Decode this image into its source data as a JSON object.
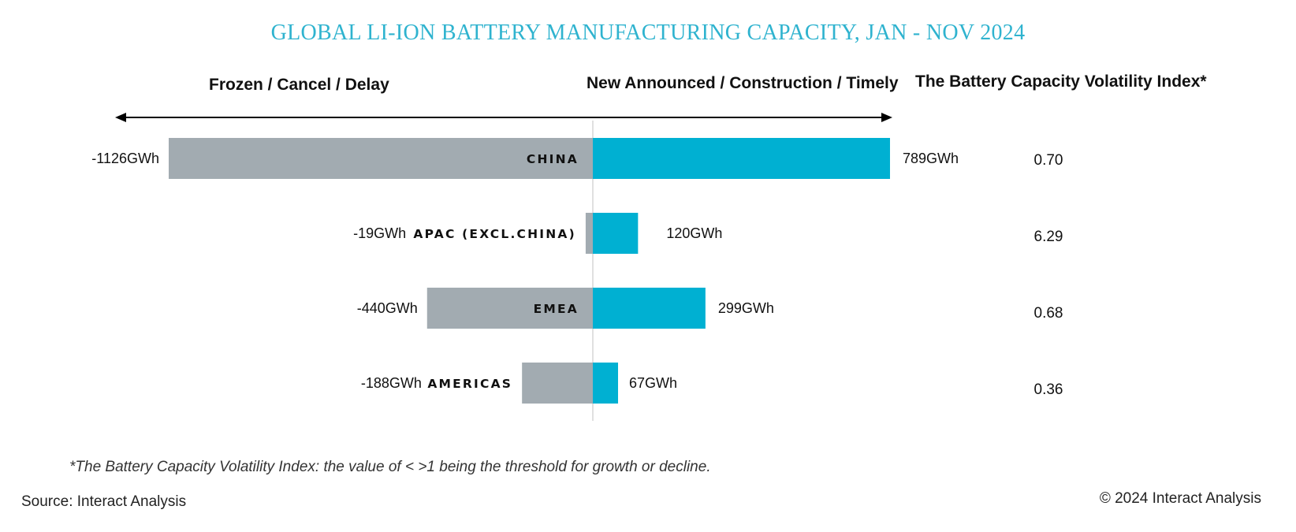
{
  "title": "GLOBAL LI-ION BATTERY MANUFACTURING CAPACITY, JAN - NOV 2024",
  "headers": {
    "left": "Frozen / Cancel / Delay",
    "right": "New Announced / Construction / Timely",
    "index": "The Battery Capacity Volatility Index*"
  },
  "footnote": "*The Battery Capacity Volatility Index: the value of < >1 being the threshold for growth or decline.",
  "source": "Source: Interact Analysis",
  "copyright": "© 2024 Interact Analysis",
  "colors": {
    "title": "#2fb3cf",
    "negative": "#a2abb1",
    "positive": "#00b0d2",
    "axis": "#d6d6d6"
  },
  "chart_data": {
    "type": "bar",
    "orientation": "horizontal-diverging",
    "unit": "GWh",
    "categories": [
      "CHINA",
      "APAC (EXCL.CHINA)",
      "EMEA",
      "AMERICAS"
    ],
    "series": [
      {
        "key": "negative",
        "values": [
          -1126,
          -19,
          -440,
          -188
        ],
        "labels": [
          "-1126GWh",
          "-19GWh",
          "-440GWh",
          "-188GWh"
        ]
      },
      {
        "key": "positive",
        "values": [
          789,
          120,
          299,
          67
        ],
        "labels": [
          "789GWh",
          "120GWh",
          "299GWh",
          "67GWh"
        ]
      }
    ],
    "volatility_index": [
      "0.70",
      "6.29",
      "0.68",
      "0.36"
    ]
  }
}
